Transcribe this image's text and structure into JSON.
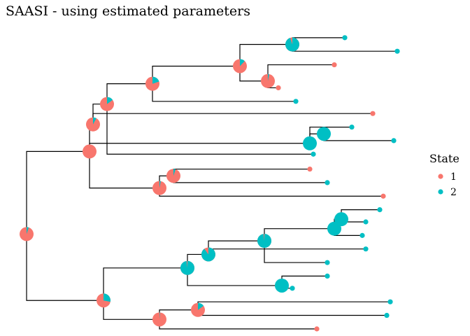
{
  "chart_data": {
    "type": "tree",
    "title": "SAASI - using estimated parameters",
    "legend": {
      "title": "State",
      "placement": "right",
      "entries": [
        {
          "label": "1",
          "color": "#F8766D"
        },
        {
          "label": "2",
          "color": "#00BFC4"
        }
      ]
    },
    "colors": {
      "state1": "#F8766D",
      "state2": "#00BFC4"
    },
    "internal_nodes": [
      {
        "id": "n_root",
        "depth": 0.0,
        "row": 15.5,
        "p1": 0.95
      },
      {
        "id": "n_A",
        "depth": 0.18,
        "row": 9.4,
        "p1": 1.0
      },
      {
        "id": "n_B",
        "depth": 0.19,
        "row": 7.4,
        "p1": 0.92
      },
      {
        "id": "n_C",
        "depth": 0.23,
        "row": 5.9,
        "p1": 0.85
      },
      {
        "id": "n_D",
        "depth": 0.36,
        "row": 4.4,
        "p1": 0.8
      },
      {
        "id": "n_E",
        "depth": 0.61,
        "row": 3.1,
        "p1": 0.88
      },
      {
        "id": "n_F",
        "depth": 0.76,
        "row": 1.5,
        "p1": 0.05
      },
      {
        "id": "n_G",
        "depth": 0.69,
        "row": 4.2,
        "p1": 0.97
      },
      {
        "id": "n_H",
        "depth": 0.81,
        "row": 8.8,
        "p1": 0.0
      },
      {
        "id": "n_I",
        "depth": 0.85,
        "row": 8.1,
        "p1": 0.0
      },
      {
        "id": "n_J",
        "depth": 0.38,
        "row": 12.1,
        "p1": 0.97
      },
      {
        "id": "n_K",
        "depth": 0.42,
        "row": 11.2,
        "p1": 0.95
      },
      {
        "id": "n_L",
        "depth": 0.22,
        "row": 20.4,
        "p1": 0.72
      },
      {
        "id": "n_M",
        "depth": 0.46,
        "row": 18.0,
        "p1": 0.02
      },
      {
        "id": "n_N",
        "depth": 0.52,
        "row": 17.0,
        "p1": 0.1
      },
      {
        "id": "n_O",
        "depth": 0.68,
        "row": 16.0,
        "p1": 0.02
      },
      {
        "id": "n_P",
        "depth": 0.88,
        "row": 15.1,
        "p1": 0.0
      },
      {
        "id": "n_Q",
        "depth": 0.9,
        "row": 14.4,
        "p1": 0.0
      },
      {
        "id": "n_R",
        "depth": 0.73,
        "row": 19.3,
        "p1": 0.0
      },
      {
        "id": "n_S",
        "depth": 0.38,
        "row": 21.8,
        "p1": 0.99
      },
      {
        "id": "n_T",
        "depth": 0.49,
        "row": 21.1,
        "p1": 0.85
      }
    ],
    "tips": [
      {
        "id": "t1",
        "depth": 0.91,
        "row": 1,
        "state": "2"
      },
      {
        "id": "t2",
        "depth": 1.06,
        "row": 2,
        "state": "2"
      },
      {
        "id": "t3",
        "depth": 0.88,
        "row": 3,
        "state": "1"
      },
      {
        "id": "t4",
        "depth": 0.72,
        "row": 4.7,
        "state": "1"
      },
      {
        "id": "t5",
        "depth": 0.77,
        "row": 5.7,
        "state": "2"
      },
      {
        "id": "t6",
        "depth": 0.99,
        "row": 6.6,
        "state": "1"
      },
      {
        "id": "t7",
        "depth": 0.93,
        "row": 7.6,
        "state": "2"
      },
      {
        "id": "t8",
        "depth": 1.05,
        "row": 8.6,
        "state": "2"
      },
      {
        "id": "t9",
        "depth": 0.82,
        "row": 9.6,
        "state": "2"
      },
      {
        "id": "t10",
        "depth": 0.81,
        "row": 10.7,
        "state": "1"
      },
      {
        "id": "t11",
        "depth": 0.86,
        "row": 11.7,
        "state": "2"
      },
      {
        "id": "t12",
        "depth": 1.02,
        "row": 12.7,
        "state": "1"
      },
      {
        "id": "t13",
        "depth": 1.01,
        "row": 13.7,
        "state": "2"
      },
      {
        "id": "t14",
        "depth": 0.97,
        "row": 14.6,
        "state": "2"
      },
      {
        "id": "t15",
        "depth": 0.96,
        "row": 15.6,
        "state": "2"
      },
      {
        "id": "t16",
        "depth": 0.97,
        "row": 16.6,
        "state": "2"
      },
      {
        "id": "t17",
        "depth": 0.86,
        "row": 17.6,
        "state": "2"
      },
      {
        "id": "t18",
        "depth": 0.86,
        "row": 18.6,
        "state": "2"
      },
      {
        "id": "t19",
        "depth": 0.76,
        "row": 19.5,
        "state": "2"
      },
      {
        "id": "t20",
        "depth": 1.04,
        "row": 20.5,
        "state": "2"
      },
      {
        "id": "t21",
        "depth": 1.03,
        "row": 21.5,
        "state": "2"
      },
      {
        "id": "t22",
        "depth": 0.83,
        "row": 22.5,
        "state": "1"
      }
    ],
    "edges": [
      [
        "n_root",
        "n_A"
      ],
      [
        "n_root",
        "n_L"
      ],
      [
        "n_A",
        "n_B"
      ],
      [
        "n_A",
        "n_H"
      ],
      [
        "n_A",
        "n_J"
      ],
      [
        "n_B",
        "n_C"
      ],
      [
        "n_B",
        "t6"
      ],
      [
        "n_C",
        "n_D"
      ],
      [
        "n_C",
        "t9"
      ],
      [
        "n_D",
        "n_E"
      ],
      [
        "n_D",
        "t5"
      ],
      [
        "n_E",
        "n_F"
      ],
      [
        "n_E",
        "n_G"
      ],
      [
        "n_F",
        "t1"
      ],
      [
        "n_F",
        "t2"
      ],
      [
        "n_G",
        "t3"
      ],
      [
        "n_G",
        "t4"
      ],
      [
        "n_H",
        "n_I"
      ],
      [
        "n_H",
        "t7"
      ],
      [
        "n_I",
        "t7"
      ],
      [
        "n_I",
        "t8"
      ],
      [
        "n_J",
        "n_K"
      ],
      [
        "n_J",
        "t12"
      ],
      [
        "n_K",
        "t10"
      ],
      [
        "n_K",
        "t11"
      ],
      [
        "n_L",
        "n_M"
      ],
      [
        "n_L",
        "n_S"
      ],
      [
        "n_M",
        "n_N"
      ],
      [
        "n_M",
        "n_R"
      ],
      [
        "n_N",
        "n_O"
      ],
      [
        "n_N",
        "t16"
      ],
      [
        "n_O",
        "n_P"
      ],
      [
        "n_O",
        "t17"
      ],
      [
        "n_P",
        "n_Q"
      ],
      [
        "n_P",
        "t15"
      ],
      [
        "n_Q",
        "t13"
      ],
      [
        "n_Q",
        "t14"
      ],
      [
        "n_R",
        "t18"
      ],
      [
        "n_R",
        "t19"
      ],
      [
        "n_S",
        "n_T"
      ],
      [
        "n_S",
        "t22"
      ],
      [
        "n_T",
        "t20"
      ],
      [
        "n_T",
        "t21"
      ]
    ]
  }
}
